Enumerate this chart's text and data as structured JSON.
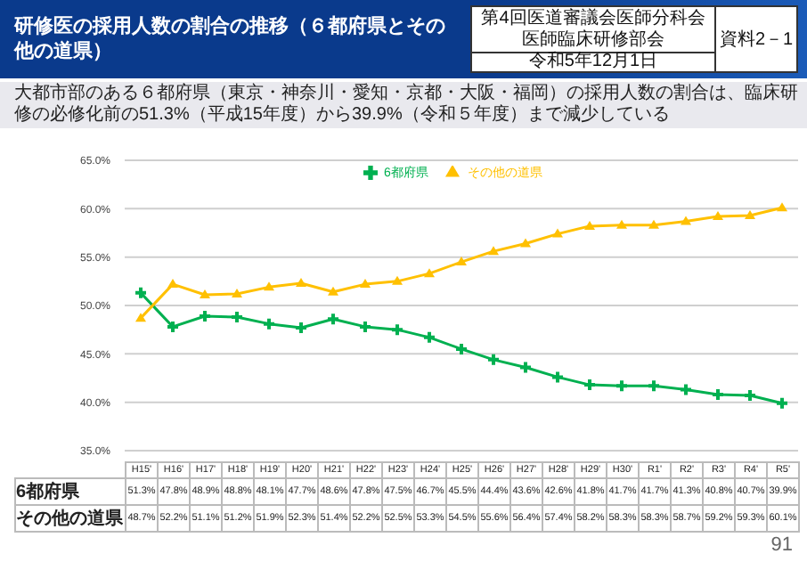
{
  "chart_data": {
    "type": "line",
    "title": "研修医の採用人数の割合の推移（６都府県とその他の道県）",
    "subtitle": "大都市部のある６都府県（東京・神奈川・愛知・京都・大阪・福岡）の採用人数の割合は、臨床研修の必修化前の51.3%（平成15年度）から39.9%（令和５年度）まで減少している",
    "annotations": [
      "第4回医道審議会医師分科会",
      "医師臨床研修部会",
      "令和5年12月1日",
      "資料2－1",
      "91"
    ],
    "categories": [
      "H15'",
      "H16'",
      "H17'",
      "H18'",
      "H19'",
      "H20'",
      "H21'",
      "H22'",
      "H23'",
      "H24'",
      "H25'",
      "H26'",
      "H27'",
      "H28'",
      "H29'",
      "H30'",
      "R1'",
      "R2'",
      "R3'",
      "R4'",
      "R5'"
    ],
    "series": [
      {
        "name": "6都府県",
        "color": "#00b050",
        "marker": "cross",
        "values": [
          51.3,
          47.8,
          48.9,
          48.8,
          48.1,
          47.7,
          48.6,
          47.8,
          47.5,
          46.7,
          45.5,
          44.4,
          43.6,
          42.6,
          41.8,
          41.7,
          41.7,
          41.3,
          40.8,
          40.7,
          39.9
        ],
        "value_labels": [
          "51.3%",
          "47.8%",
          "48.9%",
          "48.8%",
          "48.1%",
          "47.7%",
          "48.6%",
          "47.8%",
          "47.5%",
          "46.7%",
          "45.5%",
          "44.4%",
          "43.6%",
          "42.6%",
          "41.8%",
          "41.7%",
          "41.7%",
          "41.3%",
          "40.8%",
          "40.7%",
          "39.9%"
        ]
      },
      {
        "name": "その他の道県",
        "color": "#ffc000",
        "marker": "triangle",
        "values": [
          48.7,
          52.2,
          51.1,
          51.2,
          51.9,
          52.3,
          51.4,
          52.2,
          52.5,
          53.3,
          54.5,
          55.6,
          56.4,
          57.4,
          58.2,
          58.3,
          58.3,
          58.7,
          59.2,
          59.3,
          60.1
        ],
        "value_labels": [
          "48.7%",
          "52.2%",
          "51.1%",
          "51.2%",
          "51.9%",
          "52.3%",
          "51.4%",
          "52.2%",
          "52.5%",
          "53.3%",
          "54.5%",
          "55.6%",
          "56.4%",
          "57.4%",
          "58.2%",
          "58.3%",
          "58.3%",
          "58.7%",
          "59.2%",
          "59.3%",
          "60.1%"
        ]
      }
    ],
    "ylim": [
      35,
      65
    ],
    "yticks": [
      {
        "value": 35,
        "label": "35.0%"
      },
      {
        "value": 40,
        "label": "40.0%"
      },
      {
        "value": 45,
        "label": "45.0%"
      },
      {
        "value": 50,
        "label": "50.0%"
      },
      {
        "value": 55,
        "label": "55.0%"
      },
      {
        "value": 60,
        "label": "60.0%"
      },
      {
        "value": 65,
        "label": "65.0%"
      }
    ],
    "grid": "y",
    "legend": "top",
    "line_style": "solid",
    "tick_labels": "y"
  }
}
